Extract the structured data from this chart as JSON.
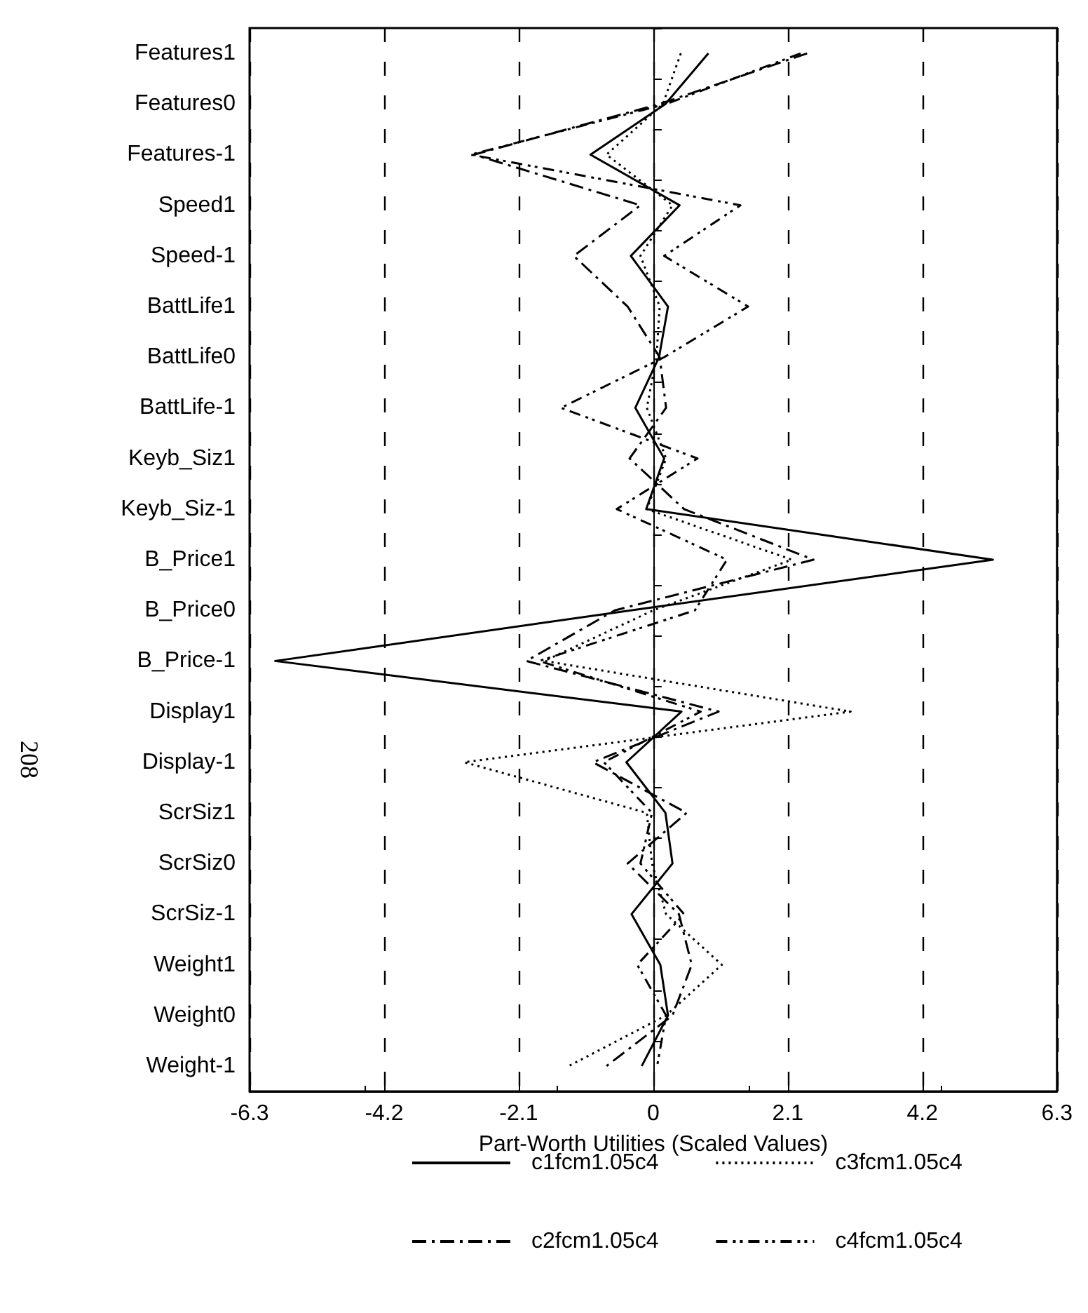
{
  "chart_data": {
    "type": "line",
    "orientation": "horizontal",
    "xlabel": "Part-Worth Utilities (Scaled Values)",
    "annotations": [
      "208"
    ],
    "categories": [
      "Features1",
      "Features0",
      "Features-1",
      "Speed1",
      "Speed-1",
      "BattLife1",
      "BattLife0",
      "BattLife-1",
      "Keyb_Siz1",
      "Keyb_Siz-1",
      "B_Price1",
      "B_Price0",
      "B_Price-1",
      "Display1",
      "Display-1",
      "ScrSiz1",
      "ScrSiz0",
      "ScrSiz-1",
      "Weight1",
      "Weight0",
      "Weight-1"
    ],
    "xlim": [
      -6.3,
      6.3
    ],
    "xticks": [
      -6.3,
      -4.2,
      -2.1,
      0,
      2.1,
      4.2,
      6.3
    ],
    "grid": "x",
    "legend": "bottom",
    "marker": "none",
    "series": [
      {
        "name": "c1fcm1.05c4",
        "color": "#000000",
        "line_style": "solid",
        "values": [
          0.86,
          0.19,
          -0.98,
          0.41,
          -0.35,
          0.23,
          0.09,
          -0.28,
          0.17,
          -0.11,
          5.3,
          -0.35,
          -5.9,
          0.44,
          -0.42,
          0.19,
          0.3,
          -0.34,
          0.11,
          0.23,
          -0.18
        ]
      },
      {
        "name": "c3fcm1.05c4",
        "color": "#000000",
        "line_style": "dotted",
        "values": [
          0.43,
          0.15,
          -0.73,
          0.3,
          -0.2,
          0.1,
          0.05,
          -0.1,
          0.2,
          -0.1,
          2.16,
          0,
          -1.7,
          3.08,
          -2.95,
          -0.1,
          -0.02,
          0.2,
          1.07,
          0.2,
          -1.32
        ]
      },
      {
        "name": "c2fcm1.05c4",
        "color": "#000000",
        "line_style": "dashdot",
        "values": [
          2.4,
          0.1,
          -2.8,
          -0.2,
          -1.24,
          -0.4,
          0.1,
          0.2,
          -0.37,
          0.48,
          2.5,
          -0.6,
          -1.98,
          1.02,
          -0.94,
          0.52,
          -0.4,
          0.4,
          0.6,
          0.3,
          -0.73
        ]
      },
      {
        "name": "c4fcm1.05c4",
        "color": "#000000",
        "line_style": "dashdotdot",
        "values": [
          2.3,
          0.2,
          -2.85,
          1.36,
          0.17,
          1.48,
          0.17,
          -1.44,
          0.69,
          -0.57,
          1.15,
          0.65,
          -1.78,
          0.74,
          -0.77,
          -0.02,
          -0.2,
          0.48,
          -0.25,
          0.2,
          0.06
        ]
      }
    ]
  }
}
